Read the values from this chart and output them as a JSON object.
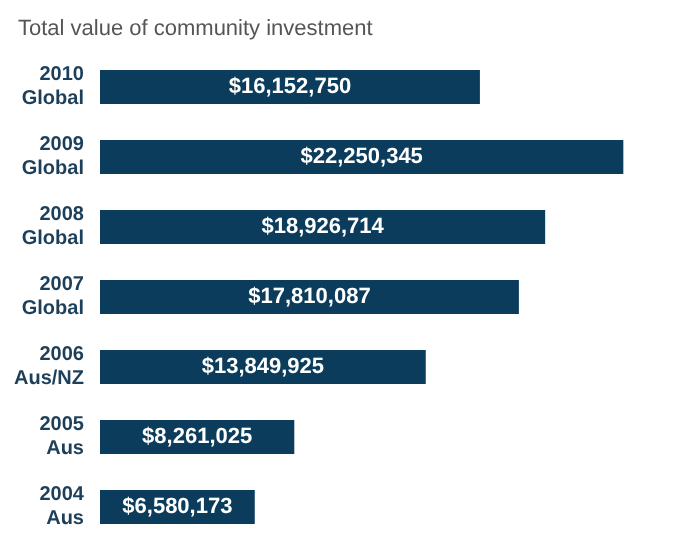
{
  "chart_data": {
    "type": "bar",
    "orientation": "horizontal",
    "title": "Total value of community investment",
    "categories": [
      "2010\nGlobal",
      "2009\nGlobal",
      "2008\nGlobal",
      "2007\nGlobal",
      "2006\nAus/NZ",
      "2005\nAus",
      "2004\nAus"
    ],
    "values": [
      16152750,
      22250345,
      18926714,
      17810087,
      13849925,
      8261025,
      6580173
    ],
    "value_labels": [
      "$16,152,750",
      "$22,250,345",
      "$18,926,714",
      "$17,810,087",
      "$13,849,925",
      "$8,261,025",
      "$6,580,173"
    ],
    "color": "#0c3c5c"
  }
}
